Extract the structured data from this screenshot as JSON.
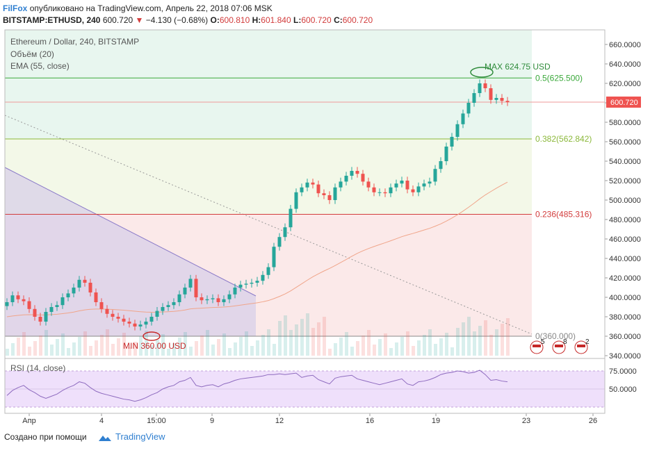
{
  "header": {
    "brand": "FilFox",
    "published": "опубликовано на TradingView.com, Апрель 22, 2018 07:06 MSK",
    "symbol": "BITSTAMP:ETHUSD, 240",
    "last": "600.720",
    "change_arrow": "▼",
    "change": "−4.130 (−0.68%)",
    "o_label": "O:",
    "o": "600.810",
    "h_label": "H:",
    "h": "601.840",
    "l_label": "L:",
    "l": "600.720",
    "c_label": "C:",
    "c": "600.720"
  },
  "legend": {
    "title": "Ethereum / Dollar, 240, BITSTAMP",
    "volume": "Объём (20)",
    "ema": "EMA (55, close)",
    "rsi": "RSI (14, close)"
  },
  "price_axis": {
    "ticks": [
      "660.0000",
      "640.0000",
      "620.0000",
      "600.0000",
      "580.0000",
      "560.0000",
      "540.0000",
      "520.0000",
      "500.0000",
      "480.0000",
      "460.0000",
      "440.0000",
      "420.0000",
      "400.0000",
      "380.0000",
      "360.0000",
      "340.0000"
    ],
    "current_price": "600.720"
  },
  "rsi_axis": {
    "ticks": [
      "75.0000",
      "50.0000"
    ]
  },
  "time_axis": {
    "ticks": [
      "Апр",
      "4",
      "15:00",
      "9",
      "12",
      "16",
      "19",
      "23",
      "26"
    ]
  },
  "fib_levels": [
    {
      "label": "0.5(625.500)",
      "value": 625.5,
      "color": "#3aa83a"
    },
    {
      "label": "0.382(562.842)",
      "value": 562.842,
      "color": "#8bb83a"
    },
    {
      "label": "0.236(485.316)",
      "value": 485.316,
      "color": "#d23c3c"
    },
    {
      "label": "0(360.000)",
      "value": 360.0,
      "color": "#888888"
    }
  ],
  "annotations": {
    "max": "MAX 624.75 USD",
    "min": "MIN 360.00 USD"
  },
  "events": [
    "5",
    "8",
    "2"
  ],
  "footer": {
    "created": "Создано при помощи",
    "logo_text": "TradingView"
  },
  "colors": {
    "up": "#26a69a",
    "down": "#ef5350",
    "fib_green_bg": "#e8f6ef",
    "fib_yellow_bg": "#f3f8e8",
    "fib_red_bg": "#fbe9e9",
    "rsi_bg": "#efe0fb",
    "triangle": "#d6cde8"
  },
  "chart_data": {
    "type": "candlestick",
    "ylim": [
      340,
      670
    ],
    "close_prices": [
      395,
      402,
      398,
      396,
      388,
      380,
      375,
      385,
      390,
      392,
      400,
      404,
      410,
      418,
      415,
      405,
      395,
      388,
      383,
      380,
      378,
      375,
      373,
      370,
      372,
      375,
      380,
      386,
      390,
      392,
      395,
      403,
      410,
      419,
      400,
      397,
      398,
      399,
      395,
      398,
      403,
      410,
      413,
      414,
      415,
      417,
      423,
      431,
      452,
      462,
      472,
      491,
      508,
      513,
      518,
      516,
      507,
      505,
      500,
      513,
      519,
      525,
      530,
      527,
      519,
      513,
      508,
      508,
      507,
      513,
      517,
      520,
      511,
      508,
      514,
      517,
      519,
      532,
      540,
      555,
      565,
      578,
      589,
      600,
      610,
      620,
      615,
      603,
      605,
      602,
      600.72
    ],
    "rsi_values": [
      41,
      48,
      52,
      55,
      49,
      45,
      40,
      37,
      40,
      43,
      48,
      52,
      55,
      60,
      58,
      52,
      47,
      44,
      42,
      40,
      38,
      36,
      35,
      33,
      35,
      38,
      42,
      45,
      50,
      53,
      55,
      60,
      62,
      66,
      55,
      53,
      55,
      56,
      53,
      57,
      59,
      62,
      64,
      65,
      66,
      67,
      68,
      70,
      70,
      71,
      70,
      71,
      72,
      66,
      68,
      69,
      63,
      60,
      57,
      65,
      67,
      68,
      69,
      64,
      62,
      60,
      58,
      56,
      58,
      60,
      62,
      64,
      57,
      55,
      60,
      61,
      63,
      66,
      70,
      72,
      73,
      75,
      74,
      72,
      73,
      76,
      70,
      62,
      63,
      61,
      60
    ]
  }
}
